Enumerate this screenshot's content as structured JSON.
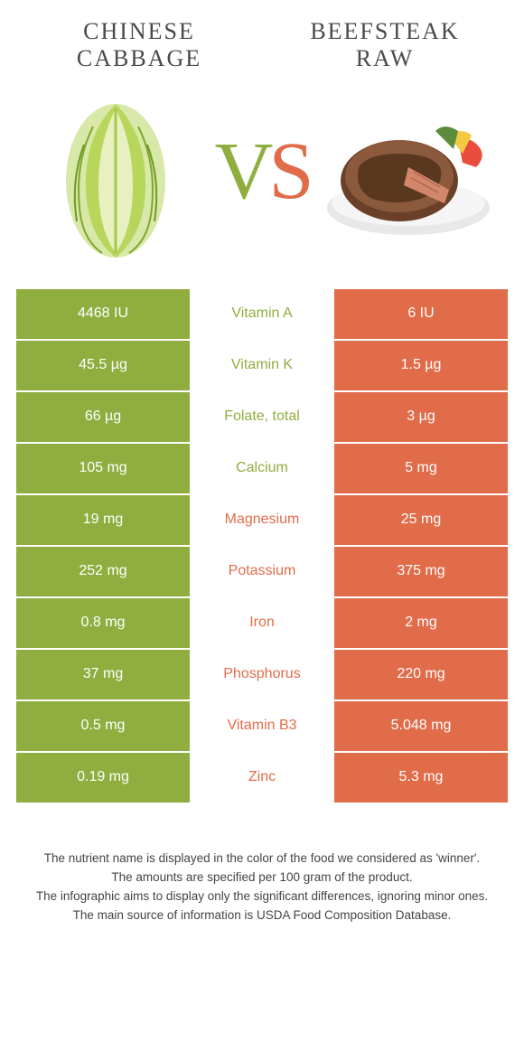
{
  "colors": {
    "green": "#8fae3f",
    "orange": "#e06c4a",
    "white": "#ffffff"
  },
  "left": {
    "title_line1": "Chinese",
    "title_line2": "cabbage"
  },
  "right": {
    "title_line1": "Beefsteak",
    "title_line2": "raw"
  },
  "vs": {
    "v": "V",
    "s": "S"
  },
  "rows": [
    {
      "nutrient": "Vitamin A",
      "left": "4468 IU",
      "right": "6 IU",
      "winner": "left"
    },
    {
      "nutrient": "Vitamin K",
      "left": "45.5 µg",
      "right": "1.5 µg",
      "winner": "left"
    },
    {
      "nutrient": "Folate, total",
      "left": "66 µg",
      "right": "3 µg",
      "winner": "left"
    },
    {
      "nutrient": "Calcium",
      "left": "105 mg",
      "right": "5 mg",
      "winner": "left"
    },
    {
      "nutrient": "Magnesium",
      "left": "19 mg",
      "right": "25 mg",
      "winner": "right"
    },
    {
      "nutrient": "Potassium",
      "left": "252 mg",
      "right": "375 mg",
      "winner": "right"
    },
    {
      "nutrient": "Iron",
      "left": "0.8 mg",
      "right": "2 mg",
      "winner": "right"
    },
    {
      "nutrient": "Phosphorus",
      "left": "37 mg",
      "right": "220 mg",
      "winner": "right"
    },
    {
      "nutrient": "Vitamin B3",
      "left": "0.5 mg",
      "right": "5.048 mg",
      "winner": "right"
    },
    {
      "nutrient": "Zinc",
      "left": "0.19 mg",
      "right": "5.3 mg",
      "winner": "right"
    }
  ],
  "notes": {
    "line1": "The nutrient name is displayed in the color of the food we considered as 'winner'.",
    "line2": "The amounts are specified per 100 gram of the product.",
    "line3": "The infographic aims to display only the significant differences, ignoring minor ones.",
    "line4": "The main source of information is USDA Food Composition Database."
  }
}
